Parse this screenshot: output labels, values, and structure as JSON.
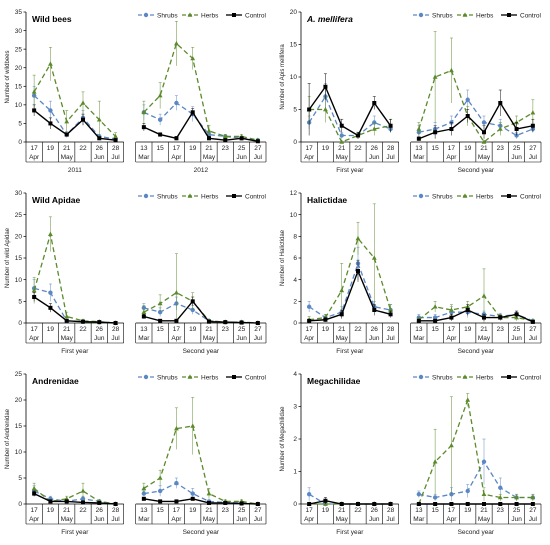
{
  "colors": {
    "shrubs": "#5b87c5",
    "herbs": "#5b8a2b",
    "control": "#000000"
  },
  "legend": [
    "Shrubs",
    "Herbs",
    "Control"
  ],
  "chart_data": [
    {
      "type": "line",
      "title": "Wild bees",
      "title_italic": false,
      "ylabel": "Number of wildbees",
      "ylim": [
        0,
        35
      ],
      "yticks": [
        0,
        5,
        10,
        15,
        20,
        25,
        30,
        35
      ],
      "groups": [
        {
          "x_days": [
            "17",
            "19",
            "21",
            "22",
            "26",
            "28"
          ],
          "x_months": [
            "Apr",
            "",
            "May",
            "",
            "Jun",
            "Jul"
          ],
          "label": "2011",
          "series": {
            "Shrubs": [
              12.5,
              8.5,
              2.0,
              6.5,
              1.5,
              0.8
            ],
            "Herbs": [
              13.5,
              21.0,
              5.5,
              10.5,
              6.0,
              1.5
            ],
            "Control": [
              8.5,
              5.0,
              2.0,
              6.0,
              1.0,
              0.5
            ]
          },
          "error": {
            "Shrubs": [
              2.5,
              2.5,
              0.8,
              2.0,
              0.5,
              0.3
            ],
            "Herbs": [
              4.5,
              4.5,
              3.0,
              3.0,
              5.0,
              1.0
            ],
            "Control": [
              1.5,
              1.5,
              0.5,
              1.5,
              0.3,
              0.2
            ]
          }
        },
        {
          "x_days": [
            "13",
            "15",
            "17",
            "19",
            "21",
            "23",
            "25",
            "27"
          ],
          "x_months": [
            "Mar",
            "",
            "Apr",
            "",
            "May",
            "",
            "Jun",
            "Jul"
          ],
          "label": "2012",
          "series": {
            "Shrubs": [
              8.0,
              6.0,
              10.5,
              7.5,
              2.0,
              1.5,
              1.0,
              0.5
            ],
            "Herbs": [
              8.0,
              12.5,
              26.5,
              22.5,
              3.0,
              1.5,
              1.5,
              0.5
            ],
            "Control": [
              4.0,
              2.0,
              1.0,
              8.0,
              1.0,
              0.5,
              1.0,
              0.2
            ]
          },
          "error": {
            "Shrubs": [
              2.0,
              1.5,
              2.0,
              2.0,
              1.0,
              0.5,
              0.5,
              0.2
            ],
            "Herbs": [
              3.0,
              3.5,
              6.0,
              3.0,
              1.5,
              0.5,
              0.5,
              0.2
            ],
            "Control": [
              1.0,
              0.5,
              0.5,
              1.0,
              0.5,
              0.2,
              0.3,
              0.1
            ]
          }
        }
      ]
    },
    {
      "type": "line",
      "title": "A. mellifera",
      "title_italic": true,
      "ylabel": "Number of Apis mellifera",
      "ylim": [
        0,
        20
      ],
      "yticks": [
        0,
        5,
        10,
        15,
        20
      ],
      "groups": [
        {
          "x_days": [
            "17",
            "19",
            "21",
            "22",
            "26",
            "28"
          ],
          "x_months": [
            "Apr",
            "",
            "May",
            "",
            "Jun",
            "Jul"
          ],
          "label": "First year",
          "series": {
            "Shrubs": [
              3.0,
              7.0,
              1.0,
              1.0,
              3.0,
              2.0
            ],
            "Herbs": [
              5.0,
              5.0,
              0.0,
              1.0,
              2.0,
              2.5
            ],
            "Control": [
              5.0,
              8.5,
              2.5,
              1.0,
              6.0,
              2.5
            ]
          },
          "error": {
            "Shrubs": [
              1.0,
              2.0,
              0.5,
              0.5,
              1.0,
              0.5
            ],
            "Herbs": [
              2.0,
              2.0,
              0.0,
              0.5,
              1.0,
              1.0
            ],
            "Control": [
              4.0,
              2.0,
              1.0,
              0.5,
              1.0,
              1.0
            ]
          }
        },
        {
          "x_days": [
            "13",
            "15",
            "17",
            "19",
            "21",
            "23",
            "25",
            "27"
          ],
          "x_months": [
            "Mar",
            "",
            "Apr",
            "",
            "May",
            "",
            "Jun",
            "Jul"
          ],
          "label": "Second year",
          "series": {
            "Shrubs": [
              1.5,
              2.0,
              3.0,
              6.5,
              3.0,
              2.5,
              1.0,
              2.0
            ],
            "Herbs": [
              2.0,
              10.0,
              11.0,
              4.0,
              0.0,
              2.0,
              3.0,
              4.5
            ],
            "Control": [
              0.5,
              1.5,
              2.0,
              4.0,
              1.5,
              6.0,
              2.0,
              2.5
            ]
          },
          "error": {
            "Shrubs": [
              1.0,
              1.0,
              1.0,
              1.5,
              1.0,
              1.0,
              0.5,
              0.5
            ],
            "Herbs": [
              1.0,
              7.0,
              5.0,
              1.5,
              0.0,
              1.0,
              1.0,
              2.0
            ],
            "Control": [
              0.3,
              1.0,
              1.0,
              1.0,
              1.0,
              2.0,
              1.0,
              1.0
            ]
          }
        }
      ]
    },
    {
      "type": "line",
      "title": "Wild Apidae",
      "title_italic": false,
      "ylabel": "Number of wild Apidae",
      "ylim": [
        0,
        30
      ],
      "yticks": [
        0,
        5,
        10,
        15,
        20,
        25,
        30
      ],
      "groups": [
        {
          "x_days": [
            "17",
            "19",
            "21",
            "22",
            "26",
            "28"
          ],
          "x_months": [
            "Apr",
            "",
            "May",
            "",
            "Jun",
            "Jul"
          ],
          "label": "First year",
          "series": {
            "Shrubs": [
              8.0,
              7.0,
              0.5,
              0.3,
              0.2,
              0.0
            ],
            "Herbs": [
              7.5,
              20.5,
              1.5,
              0.5,
              0.3,
              0.0
            ],
            "Control": [
              6.0,
              3.5,
              0.5,
              0.3,
              0.2,
              0.0
            ]
          },
          "error": {
            "Shrubs": [
              2.0,
              2.0,
              0.3,
              0.2,
              0.1,
              0.0
            ],
            "Herbs": [
              3.0,
              4.0,
              1.0,
              0.3,
              0.2,
              0.0
            ],
            "Control": [
              1.0,
              1.0,
              0.3,
              0.2,
              0.1,
              0.0
            ]
          }
        },
        {
          "x_days": [
            "13",
            "15",
            "17",
            "19",
            "21",
            "23",
            "25",
            "27"
          ],
          "x_months": [
            "Mar",
            "",
            "Apr",
            "",
            "May",
            "",
            "Jun",
            "Jul"
          ],
          "label": "Second year",
          "series": {
            "Shrubs": [
              3.5,
              2.5,
              4.5,
              3.0,
              0.5,
              0.2,
              0.2,
              0.0
            ],
            "Herbs": [
              2.5,
              4.5,
              7.0,
              5.0,
              0.5,
              0.2,
              0.2,
              0.0
            ],
            "Control": [
              1.5,
              0.5,
              0.5,
              5.0,
              0.3,
              0.2,
              0.1,
              0.0
            ]
          },
          "error": {
            "Shrubs": [
              1.0,
              1.0,
              1.5,
              1.0,
              0.3,
              0.1,
              0.1,
              0.0
            ],
            "Herbs": [
              1.5,
              2.0,
              9.0,
              2.0,
              0.3,
              0.1,
              0.1,
              0.0
            ],
            "Control": [
              0.5,
              0.3,
              0.3,
              1.0,
              0.2,
              0.1,
              0.1,
              0.0
            ]
          }
        }
      ]
    },
    {
      "type": "line",
      "title": "Halictidae",
      "title_italic": false,
      "ylabel": "Number of Halictidae",
      "ylim": [
        0,
        12
      ],
      "yticks": [
        0,
        2,
        4,
        6,
        8,
        10,
        12
      ],
      "groups": [
        {
          "x_days": [
            "17",
            "19",
            "21",
            "22",
            "26",
            "28"
          ],
          "x_months": [
            "Apr",
            "",
            "May",
            "",
            "Jun",
            "Jul"
          ],
          "label": "First year",
          "series": {
            "Shrubs": [
              1.5,
              0.5,
              1.0,
              5.5,
              1.5,
              1.2
            ],
            "Herbs": [
              0.3,
              0.5,
              3.0,
              7.8,
              6.0,
              1.2
            ],
            "Control": [
              0.2,
              0.3,
              0.8,
              4.8,
              1.2,
              0.8
            ]
          },
          "error": {
            "Shrubs": [
              0.5,
              0.3,
              0.5,
              1.5,
              0.5,
              0.5
            ],
            "Herbs": [
              0.3,
              0.3,
              2.5,
              1.5,
              5.0,
              0.5
            ],
            "Control": [
              0.1,
              0.2,
              0.4,
              1.0,
              0.5,
              0.3
            ]
          }
        },
        {
          "x_days": [
            "13",
            "15",
            "17",
            "19",
            "21",
            "23",
            "25",
            "27"
          ],
          "x_months": [
            "Mar",
            "",
            "Apr",
            "",
            "May",
            "",
            "Jun",
            "Jul"
          ],
          "label": "Second year",
          "series": {
            "Shrubs": [
              0.5,
              0.5,
              1.0,
              1.0,
              0.8,
              0.6,
              0.8,
              0.2
            ],
            "Herbs": [
              0.3,
              1.5,
              1.2,
              1.5,
              2.5,
              0.5,
              0.5,
              0.2
            ],
            "Control": [
              0.2,
              0.2,
              0.5,
              1.2,
              0.5,
              0.5,
              0.8,
              0.1
            ]
          },
          "error": {
            "Shrubs": [
              0.3,
              0.3,
              0.5,
              0.5,
              0.3,
              0.3,
              0.3,
              0.1
            ],
            "Herbs": [
              0.2,
              0.5,
              0.5,
              0.5,
              2.5,
              0.3,
              0.3,
              0.1
            ],
            "Control": [
              0.1,
              0.1,
              0.3,
              0.5,
              0.3,
              0.2,
              0.3,
              0.1
            ]
          }
        }
      ]
    },
    {
      "type": "line",
      "title": "Andrenidae",
      "title_italic": false,
      "ylabel": "Number of Andrenidae",
      "ylim": [
        0,
        25
      ],
      "yticks": [
        0,
        5,
        10,
        15,
        20,
        25
      ],
      "groups": [
        {
          "x_days": [
            "17",
            "19",
            "21",
            "22",
            "26",
            "28"
          ],
          "x_months": [
            "Apr",
            "",
            "May",
            "",
            "Jun",
            "Jul"
          ],
          "label": "First year",
          "series": {
            "Shrubs": [
              2.5,
              1.0,
              0.5,
              1.0,
              0.5,
              0.0
            ],
            "Herbs": [
              3.0,
              0.5,
              1.0,
              2.5,
              0.5,
              0.0
            ],
            "Control": [
              2.0,
              0.5,
              0.5,
              0.3,
              0.2,
              0.0
            ]
          },
          "error": {
            "Shrubs": [
              1.0,
              0.5,
              0.3,
              0.5,
              0.3,
              0.0
            ],
            "Herbs": [
              1.0,
              0.3,
              0.5,
              1.5,
              0.3,
              0.0
            ],
            "Control": [
              0.5,
              0.3,
              0.3,
              0.2,
              0.1,
              0.0
            ]
          }
        },
        {
          "x_days": [
            "13",
            "15",
            "17",
            "19",
            "21",
            "23",
            "25",
            "27"
          ],
          "x_months": [
            "Mar",
            "",
            "Apr",
            "",
            "May",
            "",
            "Jun",
            "Jul"
          ],
          "label": "Second year",
          "series": {
            "Shrubs": [
              2.0,
              2.5,
              4.0,
              2.0,
              0.5,
              0.3,
              0.2,
              0.0
            ],
            "Herbs": [
              3.0,
              5.0,
              14.5,
              15.0,
              2.0,
              0.5,
              0.5,
              0.0
            ],
            "Control": [
              1.0,
              0.5,
              0.5,
              1.0,
              0.2,
              0.2,
              0.1,
              0.0
            ]
          },
          "error": {
            "Shrubs": [
              0.5,
              1.0,
              1.0,
              1.0,
              0.3,
              0.2,
              0.1,
              0.0
            ],
            "Herbs": [
              1.0,
              1.5,
              4.0,
              5.5,
              1.0,
              0.3,
              0.3,
              0.0
            ],
            "Control": [
              0.3,
              0.2,
              0.2,
              0.3,
              0.1,
              0.1,
              0.1,
              0.0
            ]
          }
        }
      ]
    },
    {
      "type": "line",
      "title": "Megachilidae",
      "title_italic": false,
      "ylabel": "Number of Megachilidae",
      "ylim": [
        0,
        4
      ],
      "yticks": [
        0,
        1,
        2,
        3,
        4
      ],
      "groups": [
        {
          "x_days": [
            "17",
            "19",
            "21",
            "22",
            "26",
            "28"
          ],
          "x_months": [
            "Apr",
            "",
            "May",
            "",
            "Jun",
            "Jul"
          ],
          "label": "First year",
          "series": {
            "Shrubs": [
              0.3,
              0.0,
              0.0,
              0.0,
              0.0,
              0.0
            ],
            "Herbs": [
              0.0,
              0.0,
              0.0,
              0.0,
              0.0,
              0.0
            ],
            "Control": [
              0.0,
              0.1,
              0.0,
              0.0,
              0.0,
              0.0
            ]
          },
          "error": {
            "Shrubs": [
              0.2,
              0.0,
              0.0,
              0.0,
              0.0,
              0.0
            ],
            "Herbs": [
              0.0,
              0.0,
              0.0,
              0.0,
              0.0,
              0.0
            ],
            "Control": [
              0.0,
              0.1,
              0.0,
              0.0,
              0.0,
              0.0
            ]
          }
        },
        {
          "x_days": [
            "13",
            "15",
            "17",
            "19",
            "21",
            "23",
            "25",
            "27"
          ],
          "x_months": [
            "Mar",
            "",
            "Apr",
            "",
            "May",
            "",
            "Jun",
            "Jul"
          ],
          "label": "Second year",
          "series": {
            "Shrubs": [
              0.3,
              0.2,
              0.3,
              0.4,
              1.3,
              0.5,
              0.2,
              0.2
            ],
            "Herbs": [
              0.0,
              1.3,
              1.8,
              3.2,
              0.3,
              0.2,
              0.2,
              0.2
            ],
            "Control": [
              0.0,
              0.0,
              0.0,
              0.0,
              0.0,
              0.0,
              0.0,
              0.0
            ]
          },
          "error": {
            "Shrubs": [
              0.1,
              0.1,
              0.2,
              0.2,
              0.7,
              0.3,
              0.1,
              0.1
            ],
            "Herbs": [
              0.0,
              1.0,
              1.5,
              0.2,
              0.2,
              0.1,
              0.1,
              0.1
            ],
            "Control": [
              0.0,
              0.0,
              0.0,
              0.0,
              0.0,
              0.0,
              0.0,
              0.0
            ]
          }
        }
      ]
    }
  ]
}
